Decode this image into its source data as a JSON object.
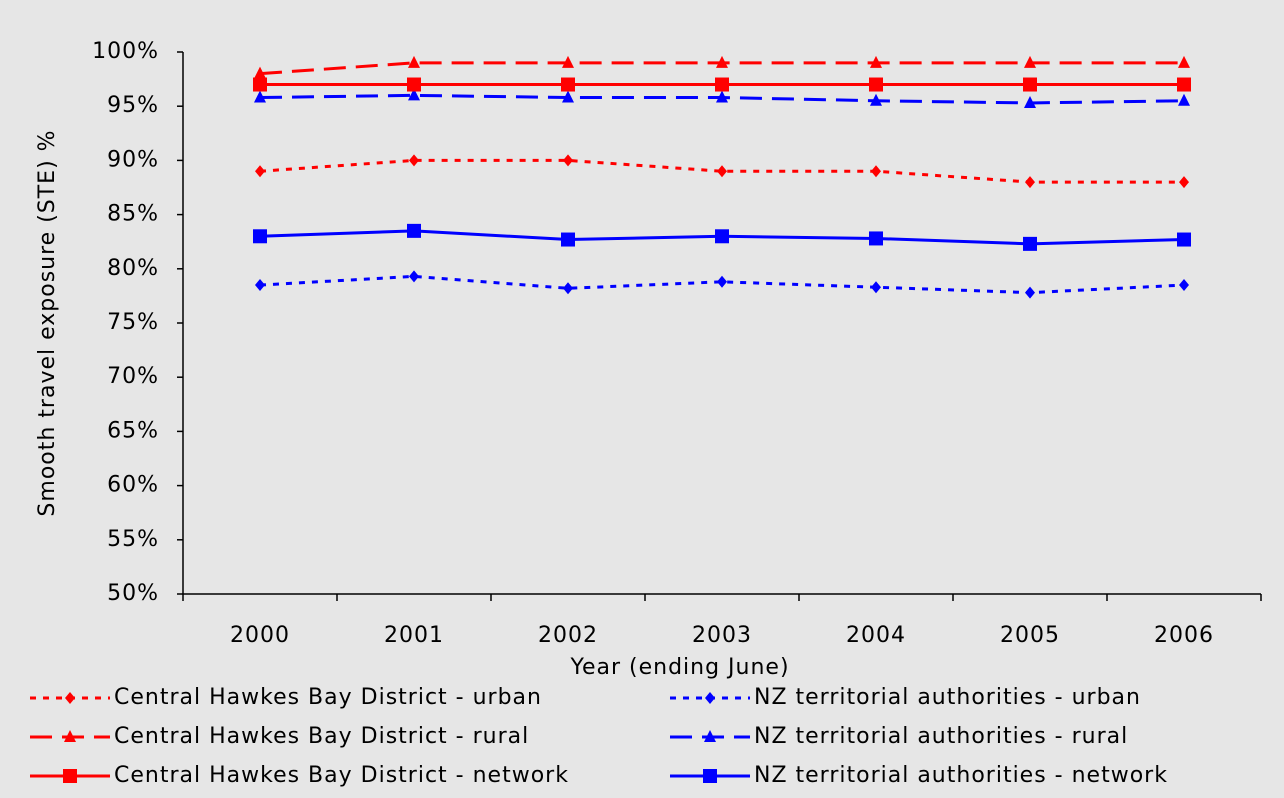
{
  "chart_data": {
    "type": "line",
    "y_label": "Smooth travel exposure (STE) %",
    "x_label": "Year (ending June)",
    "categories": [
      "2000",
      "2001",
      "2002",
      "2003",
      "2004",
      "2005",
      "2006"
    ],
    "ylim": [
      50,
      100
    ],
    "yticks": [
      {
        "value": 50,
        "label": "50%"
      },
      {
        "value": 55,
        "label": "55%"
      },
      {
        "value": 60,
        "label": "60%"
      },
      {
        "value": 65,
        "label": "65%"
      },
      {
        "value": 70,
        "label": "70%"
      },
      {
        "value": 75,
        "label": "75%"
      },
      {
        "value": 80,
        "label": "80%"
      },
      {
        "value": 85,
        "label": "85%"
      },
      {
        "value": 90,
        "label": "90%"
      },
      {
        "value": 95,
        "label": "95%"
      },
      {
        "value": 100,
        "label": "100%"
      }
    ],
    "grid": false,
    "series": [
      {
        "name": "Central Hawkes Bay District - urban",
        "color": "#ff0000",
        "line_style": "dotted",
        "marker": "diamond",
        "values": [
          89,
          90,
          90,
          89,
          89,
          88,
          88
        ]
      },
      {
        "name": "NZ territorial authorities - urban",
        "color": "#0000ff",
        "line_style": "dotted",
        "marker": "diamond",
        "values": [
          78.5,
          79.3,
          78.2,
          78.8,
          78.3,
          77.8,
          78.5
        ]
      },
      {
        "name": "Central Hawkes Bay District - rural",
        "color": "#ff0000",
        "line_style": "dashed",
        "marker": "triangle",
        "values": [
          98,
          99,
          99,
          99,
          99,
          99,
          99
        ]
      },
      {
        "name": "NZ territorial authorities - rural",
        "color": "#0000ff",
        "line_style": "dashed",
        "marker": "triangle",
        "values": [
          95.8,
          96,
          95.8,
          95.8,
          95.5,
          95.3,
          95.5
        ]
      },
      {
        "name": "Central Hawkes Bay District - network",
        "color": "#ff0000",
        "line_style": "solid",
        "marker": "square",
        "values": [
          97,
          97,
          97,
          97,
          97,
          97,
          97
        ]
      },
      {
        "name": "NZ territorial authorities - network",
        "color": "#0000ff",
        "line_style": "solid",
        "marker": "square",
        "values": [
          83,
          83.5,
          82.7,
          83,
          82.8,
          82.3,
          82.7
        ]
      }
    ]
  }
}
